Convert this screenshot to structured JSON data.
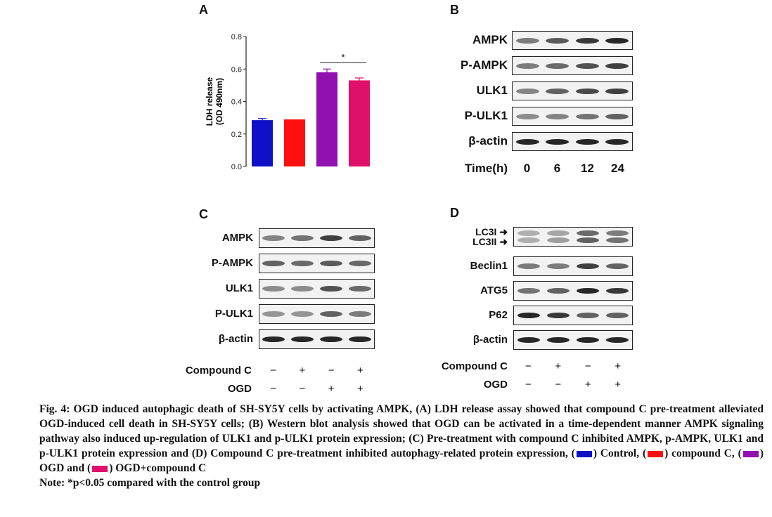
{
  "panels": {
    "a": "A",
    "b": "B",
    "c": "C",
    "d": "D"
  },
  "chart_data": {
    "type": "bar",
    "title": "",
    "xlabel": "",
    "ylabel": [
      "LDH release",
      "(OD 490nm)"
    ],
    "ylim": [
      0.0,
      0.8
    ],
    "yticks": [
      "0.0",
      "0.2",
      "0.4",
      "0.6",
      "0.8"
    ],
    "categories": [
      "Control",
      "compound C",
      "OGD",
      "OGD+compound C"
    ],
    "values": [
      0.285,
      0.29,
      0.58,
      0.53
    ],
    "errors": [
      0.01,
      0.0,
      0.02,
      0.015
    ],
    "colors": [
      "#1010c8",
      "#ff1010",
      "#9010b0",
      "#e0106a"
    ],
    "significance": {
      "between": [
        2,
        3
      ],
      "label": "*"
    }
  },
  "blot_b": {
    "rows": [
      "AMPK",
      "P-AMPK",
      "ULK1",
      "P-ULK1",
      "β-actin"
    ],
    "time_label": "Time(h)",
    "times": [
      "0",
      "6",
      "12",
      "24"
    ]
  },
  "blot_c": {
    "rows": [
      "AMPK",
      "P-AMPK",
      "ULK1",
      "P-ULK1",
      "β-actin"
    ],
    "treatments": [
      {
        "label": "Compound C",
        "signs": [
          "−",
          "+",
          "−",
          "+"
        ]
      },
      {
        "label": "OGD",
        "signs": [
          "−",
          "−",
          "+",
          "+"
        ]
      }
    ]
  },
  "blot_d": {
    "lc3_labels": [
      "LC3I",
      "LC3II"
    ],
    "lc3_arrow": "➜",
    "rows": [
      "Beclin1",
      "ATG5",
      "P62",
      "β-actin"
    ],
    "treatments": [
      {
        "label": "Compound C",
        "signs": [
          "−",
          "+",
          "−",
          "+"
        ]
      },
      {
        "label": "OGD",
        "signs": [
          "−",
          "−",
          "+",
          "+"
        ]
      }
    ]
  },
  "caption": {
    "text": "Fig. 4: OGD induced autophagic death of SH-SY5Y cells by activating AMPK, (A) LDH release assay showed that compound C pre-treatment alleviated OGD-induced cell death in SH-SY5Y cells; (B) Western blot analysis showed that OGD can be activated in a time-dependent manner AMPK signaling pathway also induced up-regulation of ULK1 and p-ULK1 protein expression; (C) Pre-treatment with compound C inhibited AMPK, p-AMPK, ULK1 and p-ULK1 protein expression and (D) Compound C pre-treatment inhibited autophagy-related protein expression, (",
    "legend": [
      {
        "label": ") Control, (",
        "color": "#1010c8"
      },
      {
        "label": ") compound C, (",
        "color": "#ff1010"
      },
      {
        "label": ") OGD and (",
        "color": "#9010b0"
      },
      {
        "label": ") OGD+compound C",
        "color": "#e0106a"
      }
    ],
    "note": "Note: *p<0.05 compared with the control group"
  }
}
